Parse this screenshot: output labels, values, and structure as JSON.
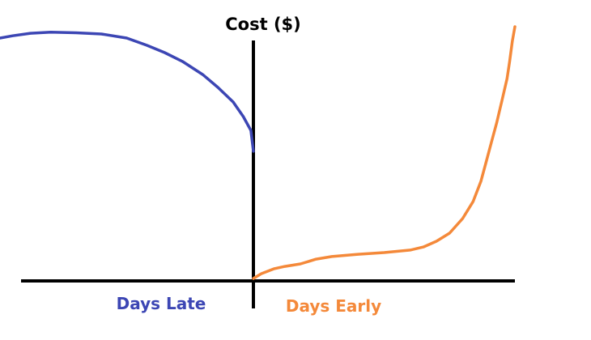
{
  "chart_data": {
    "type": "line",
    "title": "",
    "ylabel": "Cost ($)",
    "xlabel": "",
    "region_labels": {
      "left": "Days Late",
      "right": "Days Early"
    },
    "xlim": [
      -100,
      100
    ],
    "ylim": [
      0,
      100
    ],
    "grid": false,
    "legend": "none",
    "colors": {
      "late": "#3c46b4",
      "early": "#f4893a",
      "axis": "#000000"
    },
    "series": [
      {
        "x": [
          -100,
          -95,
          -88,
          -80,
          -70,
          -60,
          -50,
          -42,
          -35,
          -28,
          -20,
          -14,
          -8,
          -4,
          -1,
          0
        ],
        "y": [
          95.5,
          96.4,
          97.4,
          97.8,
          97.6,
          97.1,
          95.5,
          92.6,
          89.7,
          86.2,
          81.0,
          75.9,
          70.1,
          64.3,
          58.8,
          50.5
        ]
      },
      {
        "x": [
          0,
          3,
          8,
          12,
          18,
          24,
          30,
          40,
          50,
          60,
          65,
          70,
          75,
          80,
          84,
          87,
          89,
          91,
          93,
          95,
          97,
          98,
          99,
          100
        ],
        "y": [
          0,
          1.9,
          3.9,
          4.8,
          5.8,
          7.7,
          8.7,
          9.6,
          10.3,
          11.3,
          12.5,
          14.8,
          18.0,
          23.8,
          30.5,
          38.6,
          46.3,
          54.0,
          61.7,
          70.4,
          79.4,
          86.2,
          94.2,
          100
        ]
      }
    ]
  }
}
